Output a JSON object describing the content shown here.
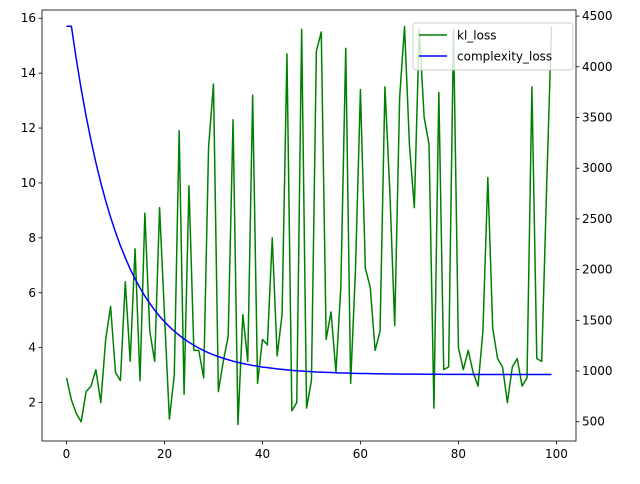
{
  "chart_data": {
    "type": "line",
    "title": "",
    "xlabel": "",
    "ylabel_left": "",
    "ylabel_right": "",
    "xlim": [
      -5,
      104
    ],
    "ylim_left": [
      0.6,
      16.3
    ],
    "ylim_right": [
      310,
      4560
    ],
    "x_ticks": [
      0,
      20,
      40,
      60,
      80,
      100
    ],
    "y_ticks_left": [
      2,
      4,
      6,
      8,
      10,
      12,
      14,
      16
    ],
    "y_ticks_right": [
      500,
      1000,
      1500,
      2000,
      2500,
      3000,
      3500,
      4000,
      4500
    ],
    "grid": false,
    "legend": "top-right",
    "series": [
      {
        "name": "kl_loss",
        "axis": "left",
        "color": "#008000",
        "x": [
          0,
          1,
          2,
          3,
          4,
          5,
          6,
          7,
          8,
          9,
          10,
          11,
          12,
          13,
          14,
          15,
          16,
          17,
          18,
          19,
          20,
          21,
          22,
          23,
          24,
          25,
          26,
          27,
          28,
          29,
          30,
          31,
          32,
          33,
          34,
          35,
          36,
          37,
          38,
          39,
          40,
          41,
          42,
          43,
          44,
          45,
          46,
          47,
          48,
          49,
          50,
          51,
          52,
          53,
          54,
          55,
          56,
          57,
          58,
          59,
          60,
          61,
          62,
          63,
          64,
          65,
          66,
          67,
          68,
          69,
          70,
          71,
          72,
          73,
          74,
          75,
          76,
          77,
          78,
          79,
          80,
          81,
          82,
          83,
          84,
          85,
          86,
          87,
          88,
          89,
          90,
          91,
          92,
          93,
          94,
          95,
          96,
          97,
          98,
          99
        ],
        "values": [
          2.9,
          2.1,
          1.6,
          1.3,
          2.4,
          2.6,
          3.2,
          2.0,
          4.3,
          5.5,
          3.1,
          2.8,
          6.4,
          3.5,
          7.6,
          2.8,
          8.9,
          4.6,
          3.5,
          9.1,
          5.2,
          1.4,
          3.0,
          11.9,
          2.3,
          9.9,
          3.9,
          3.9,
          2.9,
          11.3,
          13.6,
          2.4,
          3.5,
          4.4,
          12.3,
          1.2,
          5.2,
          3.5,
          13.2,
          2.7,
          4.3,
          4.1,
          8.0,
          3.7,
          5.2,
          14.7,
          1.7,
          2.0,
          15.6,
          1.8,
          2.8,
          14.8,
          15.5,
          4.3,
          5.3,
          3.1,
          6.2,
          14.9,
          2.7,
          6.9,
          13.4,
          6.9,
          6.2,
          3.9,
          4.6,
          13.5,
          9.7,
          4.8,
          13.1,
          15.7,
          11.4,
          9.1,
          15.6,
          12.4,
          11.4,
          1.8,
          13.3,
          3.2,
          3.3,
          15.6,
          4.0,
          3.2,
          3.9,
          3.1,
          2.6,
          4.6,
          10.2,
          4.7,
          3.6,
          3.3,
          2.0,
          3.3,
          3.6,
          2.6,
          2.9,
          13.5,
          3.6,
          3.5,
          9.8,
          15.7
        ]
      },
      {
        "name": "complexity_loss",
        "axis": "right",
        "color": "#0000ff",
        "x": [
          0,
          1,
          2,
          3,
          4,
          5,
          6,
          7,
          8,
          9,
          10,
          11,
          12,
          13,
          14,
          15,
          16,
          17,
          18,
          19,
          20,
          21,
          22,
          23,
          24,
          25,
          26,
          27,
          28,
          29,
          30,
          31,
          32,
          33,
          34,
          35,
          36,
          37,
          38,
          39,
          40,
          41,
          42,
          43,
          44,
          45,
          46,
          47,
          48,
          49,
          50,
          51,
          52,
          53,
          54,
          55,
          56,
          57,
          58,
          59,
          60,
          61,
          62,
          63,
          64,
          65,
          66,
          67,
          68,
          69,
          70,
          71,
          72,
          73,
          74,
          75,
          76,
          77,
          78,
          79,
          80,
          81,
          82,
          83,
          84,
          85,
          86,
          87,
          88,
          89,
          90,
          91,
          92,
          93,
          94,
          95,
          96,
          97,
          98,
          99
        ],
        "values": [
          4400,
          4400,
          4075,
          3781,
          3515,
          3274,
          3055,
          2857,
          2678,
          2516,
          2370,
          2237,
          2116,
          2007,
          1909,
          1820,
          1739,
          1666,
          1600,
          1540,
          1486,
          1437,
          1393,
          1353,
          1316,
          1284,
          1254,
          1227,
          1202,
          1180,
          1160,
          1142,
          1126,
          1111,
          1097,
          1085,
          1074,
          1064,
          1055,
          1047,
          1039,
          1033,
          1027,
          1021,
          1016,
          1011,
          1007,
          1003,
          1000,
          997,
          994,
          991,
          989,
          987,
          985,
          983,
          981,
          980,
          978,
          977,
          976,
          975,
          974,
          973,
          972,
          972,
          971,
          971,
          970,
          970,
          969,
          969,
          969,
          968,
          968,
          968,
          968,
          967,
          967,
          967,
          967,
          967,
          967,
          966,
          966,
          966,
          966,
          966,
          966,
          966,
          966,
          966,
          966,
          966,
          966,
          966,
          966,
          966,
          966,
          966
        ]
      }
    ]
  }
}
